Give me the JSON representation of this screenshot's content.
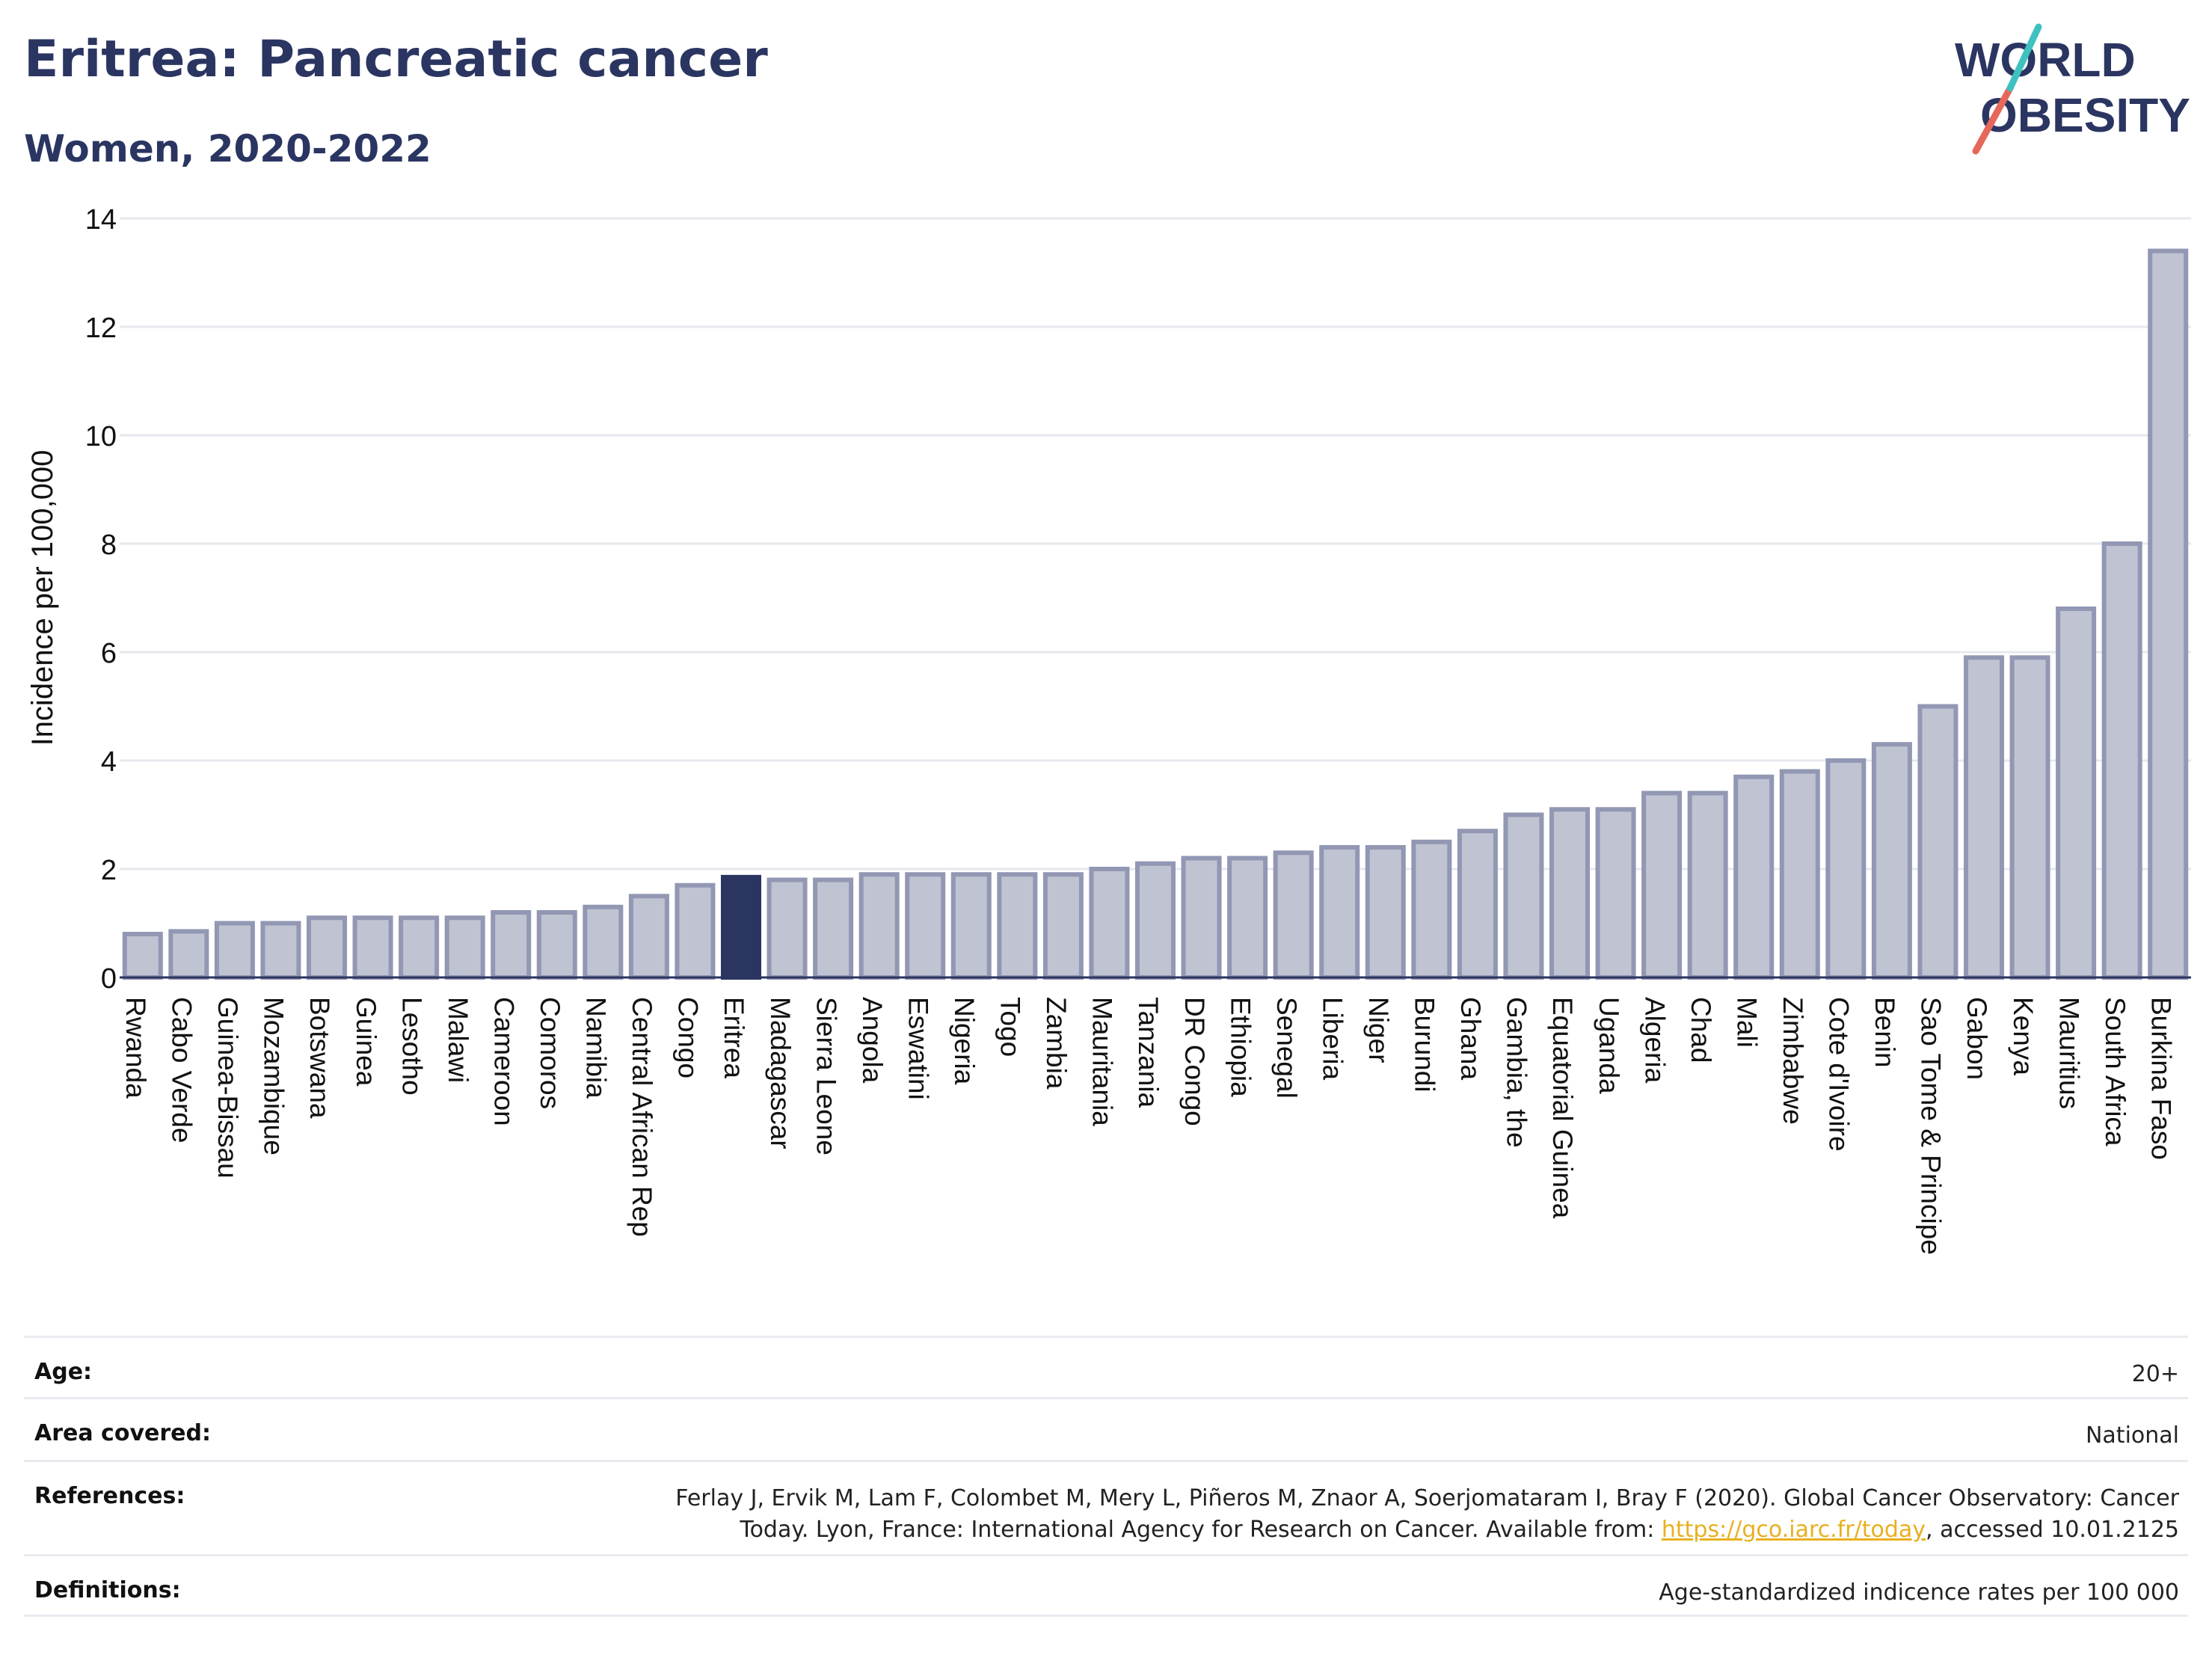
{
  "header": {
    "title": "Eritrea: Pancreatic cancer",
    "subtitle": "Women, 2020-2022"
  },
  "logo": {
    "line1": "WORLD",
    "line2": "OBESITY"
  },
  "colors": {
    "bar_fill": "#bfc3d2",
    "bar_stroke": "#9297b3",
    "highlight": "#2b3561",
    "grid": "#e6e8ee",
    "logo_teal": "#3fc1c0",
    "logo_coral": "#e5685a"
  },
  "chart_data": {
    "type": "bar",
    "title": "Eritrea: Pancreatic cancer",
    "subtitle": "Women, 2020-2022",
    "ylabel": "Incidence per 100,000",
    "xlabel": "",
    "ylim": [
      0,
      14
    ],
    "yticks": [
      0,
      2,
      4,
      6,
      8,
      10,
      12,
      14
    ],
    "grid": true,
    "highlight": "Eritrea",
    "categories": [
      "Rwanda",
      "Cabo Verde",
      "Guinea-Bissau",
      "Mozambique",
      "Botswana",
      "Guinea",
      "Lesotho",
      "Malawi",
      "Cameroon",
      "Comoros",
      "Namibia",
      "Central African Rep",
      "Congo",
      "Eritrea",
      "Madagascar",
      "Sierra Leone",
      "Angola",
      "Eswatini",
      "Nigeria",
      "Togo",
      "Zambia",
      "Mauritania",
      "Tanzania",
      "DR Congo",
      "Ethiopia",
      "Senegal",
      "Liberia",
      "Niger",
      "Burundi",
      "Ghana",
      "Gambia, the",
      "Equatorial Guinea",
      "Uganda",
      "Algeria",
      "Chad",
      "Mali",
      "Zimbabwe",
      "Cote d'Ivoire",
      "Benin",
      "Sao Tome & Principe",
      "Gabon",
      "Kenya",
      "Mauritius",
      "South Africa",
      "Burkina Faso"
    ],
    "values": [
      0.8,
      0.85,
      1.0,
      1.0,
      1.1,
      1.1,
      1.1,
      1.1,
      1.2,
      1.2,
      1.3,
      1.5,
      1.7,
      1.85,
      1.8,
      1.8,
      1.9,
      1.9,
      1.9,
      1.9,
      1.9,
      2.0,
      2.1,
      2.2,
      2.2,
      2.3,
      2.4,
      2.4,
      2.5,
      2.7,
      3.0,
      3.1,
      3.1,
      3.4,
      3.4,
      3.7,
      3.8,
      4.0,
      4.3,
      5.0,
      5.9,
      5.9,
      6.8,
      8.0,
      13.4
    ]
  },
  "details": {
    "age_label": "Age:",
    "age_value": "20+",
    "area_label": "Area covered:",
    "area_value": "National",
    "references_label": "References:",
    "references_line1": "Ferlay J, Ervik M, Lam F, Colombet M, Mery L, Piñeros M, Znaor A, Soerjomataram I, Bray F (2020). Global Cancer Observatory: Cancer",
    "references_line2_pre": "Today. Lyon, France: International Agency for Research on Cancer. Available from: ",
    "references_link": "https://gco.iarc.fr/today",
    "references_line2_post": ", accessed 10.01.2125",
    "definitions_label": "Definitions:",
    "definitions_value": "Age-standardized indicence rates per 100 000"
  }
}
